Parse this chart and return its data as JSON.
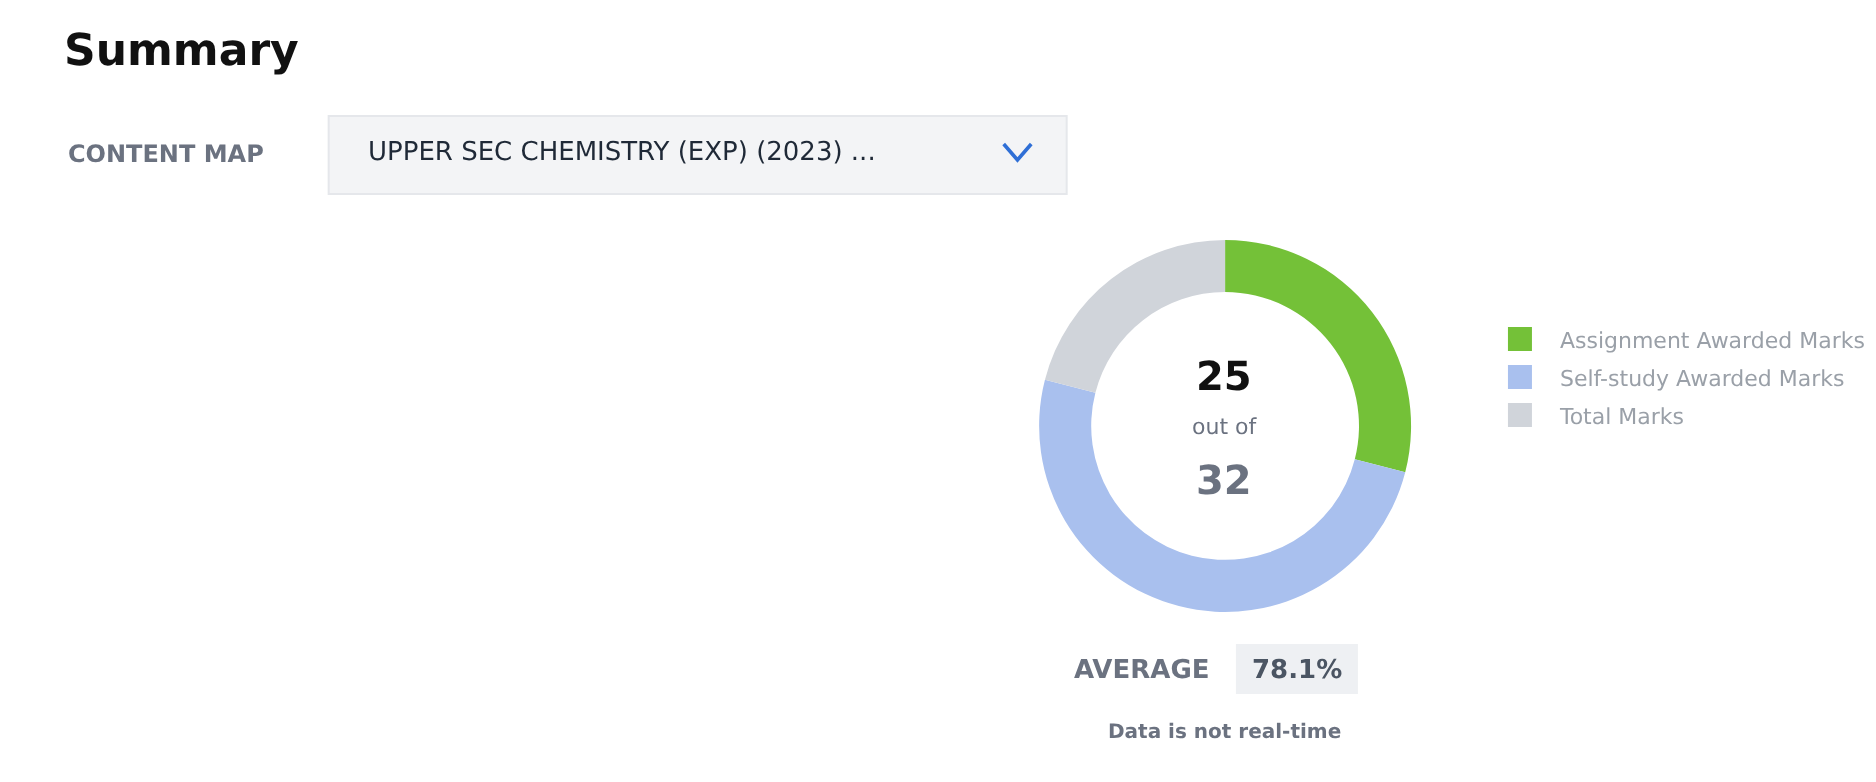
{
  "chart_data": {
    "type": "donut",
    "title": "Summary",
    "categories": [
      "Assignment Awarded Marks",
      "Self-study Awarded Marks",
      "Total Marks"
    ],
    "values": [
      29,
      50,
      21
    ],
    "colors": [
      "#74c138",
      "#a9c0ee",
      "#d0d4da"
    ],
    "legend": "right",
    "annotations": [
      "CONTENT MAP",
      "UPPER SEC CHEMISTRY (EXP) (2023) ...",
      "25",
      "out of",
      "32",
      "AVERAGE",
      "78.1%",
      "Data is not real-time"
    ]
  }
}
